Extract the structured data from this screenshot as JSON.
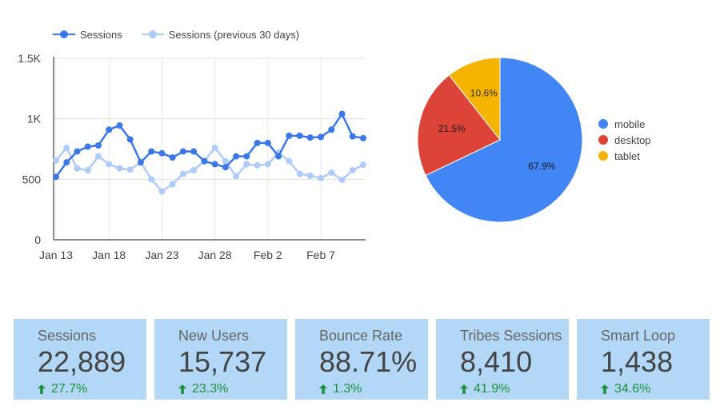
{
  "chart_data": [
    {
      "type": "line",
      "x_tick_labels": [
        "Jan 13",
        "Jan 18",
        "Jan 23",
        "Jan 28",
        "Feb 2",
        "Feb 7"
      ],
      "y_tick_labels": [
        "0",
        "500",
        "1K",
        "1.5K"
      ],
      "ylim": [
        0,
        1500
      ],
      "grid": true,
      "legend_position": "top-left",
      "series": [
        {
          "name": "Sessions",
          "color": "#3b78e7",
          "values": [
            520,
            640,
            730,
            770,
            780,
            910,
            945,
            830,
            640,
            730,
            715,
            680,
            730,
            730,
            650,
            625,
            600,
            690,
            690,
            800,
            800,
            690,
            860,
            860,
            845,
            850,
            910,
            1040,
            855,
            840
          ]
        },
        {
          "name": "Sessions (previous 30 days)",
          "color": "#aecbfa",
          "values": [
            655,
            760,
            590,
            575,
            690,
            625,
            590,
            580,
            640,
            500,
            400,
            460,
            545,
            575,
            650,
            760,
            650,
            525,
            625,
            615,
            625,
            720,
            650,
            545,
            530,
            510,
            555,
            495,
            575,
            620
          ]
        }
      ]
    },
    {
      "type": "pie",
      "slices": [
        {
          "label": "mobile",
          "value": 67.9,
          "display": "67.9%",
          "color": "#4285f4"
        },
        {
          "label": "desktop",
          "value": 21.5,
          "display": "21.5%",
          "color": "#db4437"
        },
        {
          "label": "tablet",
          "value": 10.6,
          "display": "10.6%",
          "color": "#f4b400"
        }
      ],
      "legend_position": "right"
    }
  ],
  "scorecards": [
    {
      "title": "Sessions",
      "value": "22,889",
      "change": "27.7%"
    },
    {
      "title": "New Users",
      "value": "15,737",
      "change": "23.3%"
    },
    {
      "title": "Bounce Rate",
      "value": "88.71%",
      "change": "1.3%"
    },
    {
      "title": "Tribes Sessions",
      "value": "8,410",
      "change": "41.9%"
    },
    {
      "title": "Smart Loop",
      "value": "1,438",
      "change": "34.6%"
    }
  ],
  "colors": {
    "card_bg": "#b3d7f7",
    "positive": "#1e8e3e"
  },
  "icons": {
    "change": "arrow-up-icon"
  }
}
